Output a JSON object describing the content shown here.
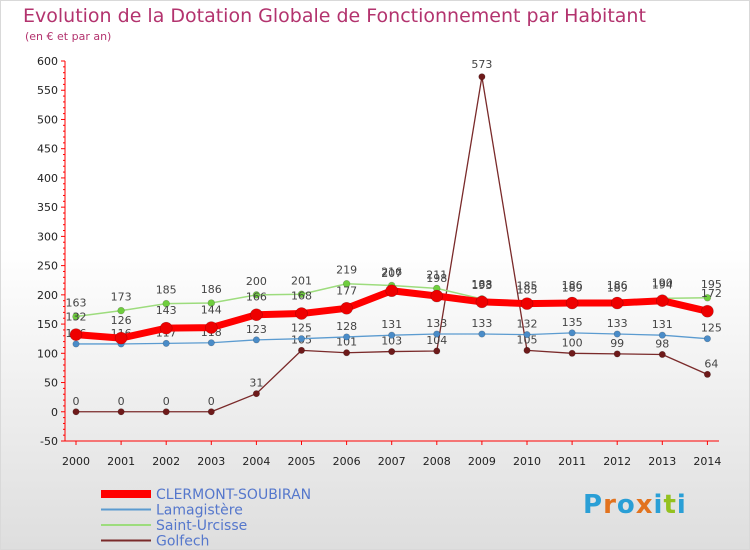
{
  "title": "Evolution de la Dotation Globale de Fonctionnement par Habitant",
  "subtitle": "(en € et par an)",
  "logo": {
    "letters": [
      "P",
      "r",
      "o",
      "x",
      "i",
      "t",
      "i"
    ],
    "colors": [
      "#2a9fd6",
      "#e2731f",
      "#2a9fd6",
      "#e2731f",
      "#2a9fd6",
      "#94c11f",
      "#2a9fd6"
    ]
  },
  "chart_data": {
    "type": "line",
    "title": "Evolution de la Dotation Globale de Fonctionnement par Habitant",
    "ylabel": "(en € et par an)",
    "xlabel": "",
    "x": [
      "2000",
      "2001",
      "2002",
      "2003",
      "2004",
      "2005",
      "2006",
      "2007",
      "2008",
      "2009",
      "2010",
      "2011",
      "2012",
      "2013",
      "2014"
    ],
    "ylim": [
      -50,
      600
    ],
    "yticks": [
      -50,
      0,
      50,
      100,
      150,
      200,
      250,
      300,
      350,
      400,
      450,
      500,
      550,
      600
    ],
    "series": [
      {
        "name": "Golfech",
        "color": "#7a2a2a",
        "marker": "#6e1a1a",
        "values": [
          0,
          0,
          0,
          0,
          31,
          105,
          101,
          103,
          104,
          573,
          105,
          100,
          99,
          98,
          64
        ]
      },
      {
        "name": "Lamagistère",
        "color": "#5b9bd0",
        "marker": "#4a8cc8",
        "values": [
          116,
          116,
          117,
          118,
          123,
          125,
          128,
          131,
          133,
          133,
          132,
          135,
          133,
          131,
          125
        ]
      },
      {
        "name": "Saint-Urcisse",
        "color": "#9ddc7d",
        "marker": "#6fce3e",
        "values": [
          163,
          173,
          185,
          186,
          200,
          201,
          219,
          216,
          211,
          193,
          185,
          189,
          189,
          194,
          195
        ]
      },
      {
        "name": "CLERMONT-SOUBIRAN",
        "color": "#ff0000",
        "marker": "#ee0000",
        "values": [
          132,
          126,
          143,
          144,
          166,
          168,
          177,
          207,
          198,
          188,
          185,
          186,
          186,
          190,
          172
        ]
      }
    ],
    "legend": {
      "position": "bottom-left",
      "order": [
        "CLERMONT-SOUBIRAN",
        "Lamagistère",
        "Saint-Urcisse",
        "Golfech"
      ]
    },
    "grid": false
  }
}
